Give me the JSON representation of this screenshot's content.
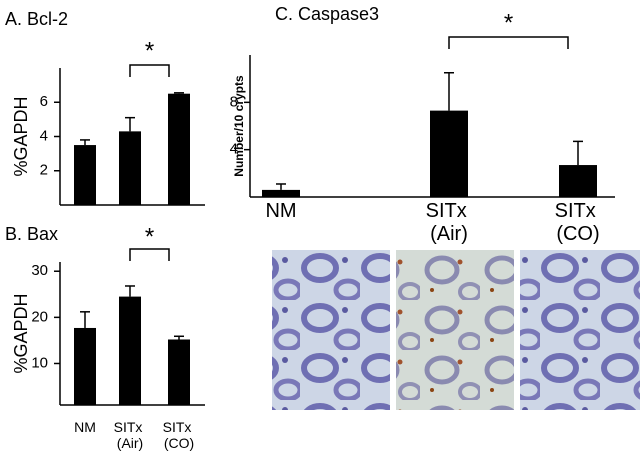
{
  "chart_data": [
    {
      "type": "bar",
      "title": "A. Bcl-2",
      "ylabel": "%GAPDH",
      "values": [
        3.5,
        4.3,
        6.5
      ],
      "errors": [
        0.3,
        0.8,
        0.05
      ],
      "color": "#000000",
      "ylim": [
        0,
        8
      ],
      "yticks": [
        2,
        4,
        6
      ],
      "annotation": "*"
    },
    {
      "type": "bar",
      "title": "B. Bax",
      "ylabel": "%GAPDH",
      "categories": [
        "NM",
        "SITx (Air)",
        "SITx (CO)"
      ],
      "values": [
        17.7,
        24.5,
        15.2
      ],
      "errors": [
        3.5,
        2.3,
        0.7
      ],
      "color": "#000000",
      "ylim": [
        1,
        32
      ],
      "yticks": [
        10,
        20,
        30
      ],
      "annotation": "*"
    },
    {
      "type": "bar",
      "title": "C. Caspase3",
      "ylabel": "Number/10 crypts",
      "categories": [
        "NM",
        "SITx (Air)",
        "SITx (CO)"
      ],
      "values": [
        0.6,
        7.3,
        2.7
      ],
      "errors": [
        0.5,
        3.2,
        2.0
      ],
      "color": "#000000",
      "ylim": [
        0,
        12
      ],
      "yticks": [
        4,
        8
      ],
      "annotation": "*"
    }
  ]
}
